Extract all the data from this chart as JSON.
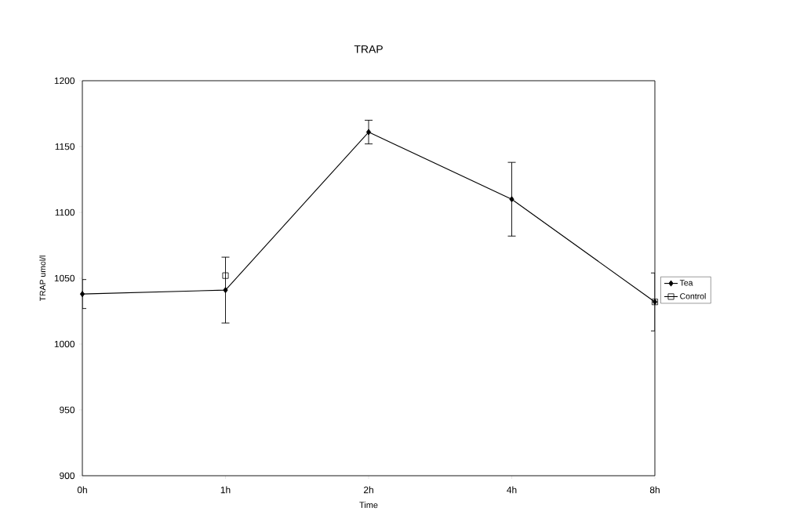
{
  "chart_data": {
    "type": "line",
    "title": "TRAP",
    "xlabel": "Time",
    "ylabel": "TRAP umol/l",
    "categories": [
      "0h",
      "1h",
      "2h",
      "4h",
      "8h"
    ],
    "series": [
      {
        "name": "Tea",
        "color": "#000000",
        "marker": "diamond",
        "values": [
          1038,
          1041,
          1161,
          1110,
          1032
        ],
        "errors": [
          11,
          25,
          9,
          28,
          22
        ]
      },
      {
        "name": "Control",
        "color": "#000000",
        "marker": "square",
        "values": [
          null,
          1052,
          null,
          null,
          1032
        ]
      }
    ],
    "ylim": [
      900,
      1200
    ],
    "yticks": [
      900,
      950,
      1000,
      1050,
      1100,
      1150,
      1200
    ],
    "grid": false,
    "legend": "right",
    "line_style": "solid"
  }
}
